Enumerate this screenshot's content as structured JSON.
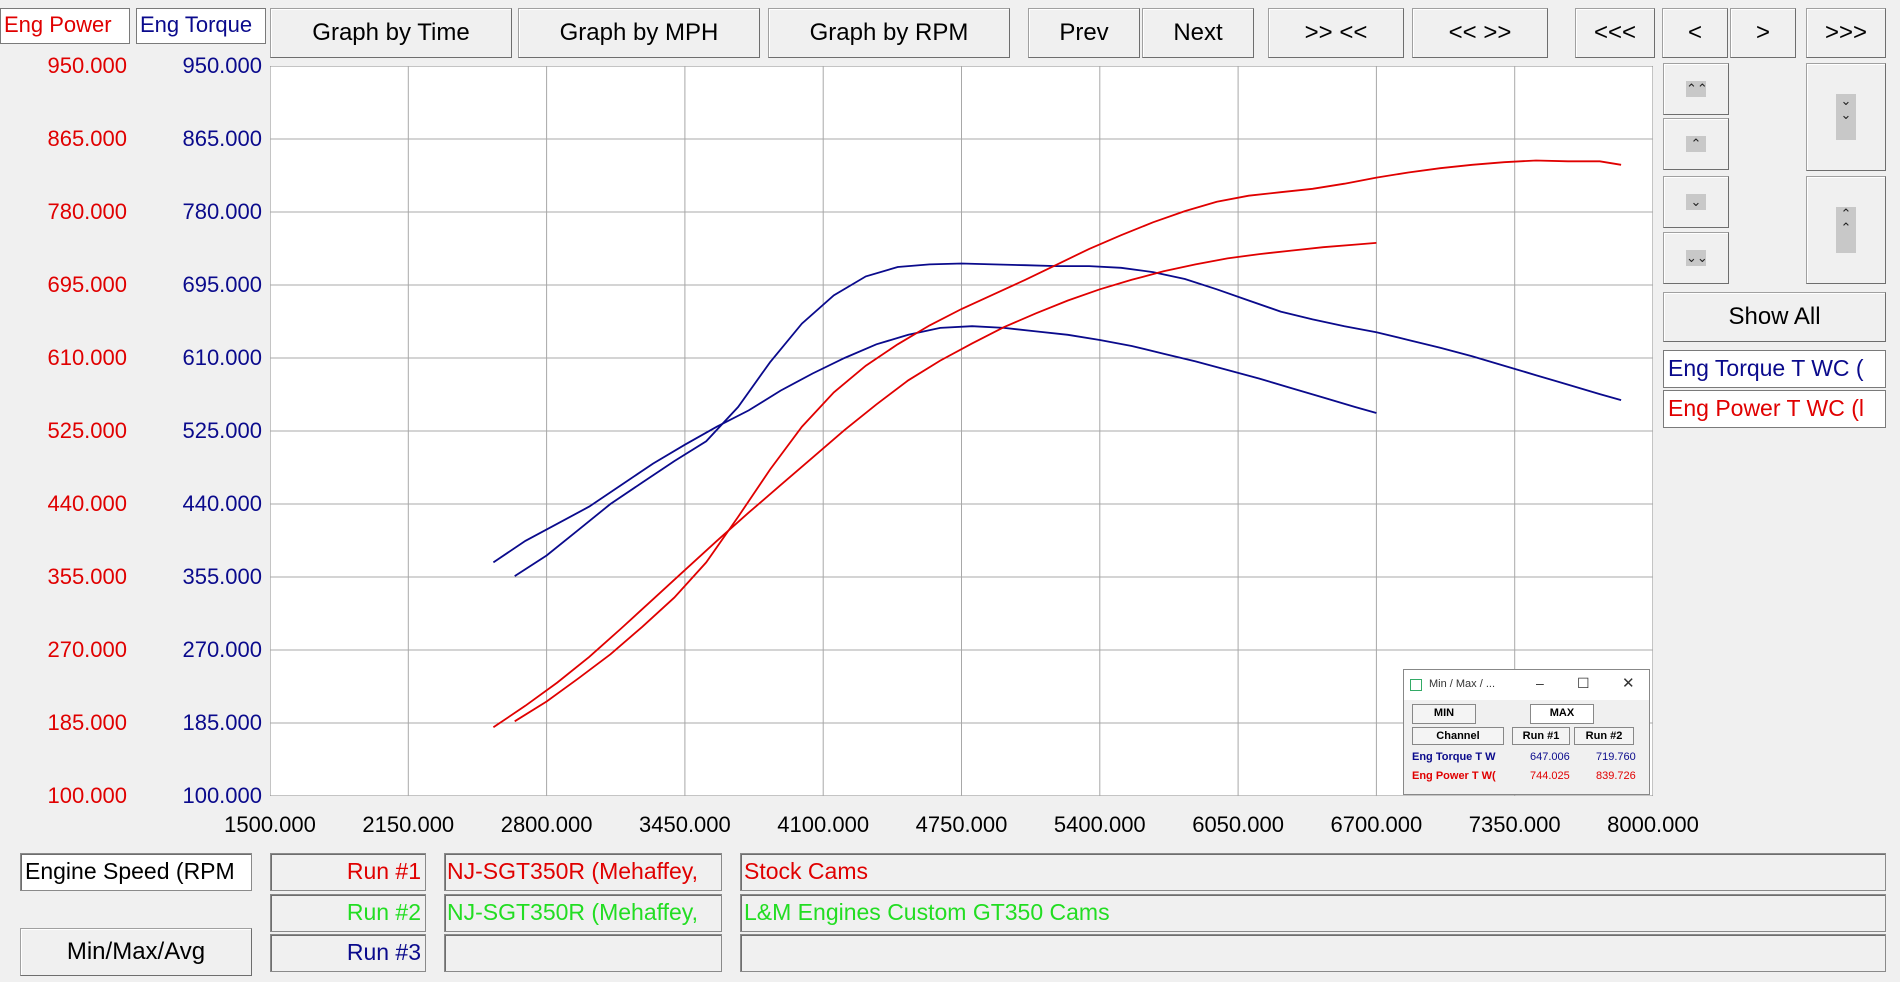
{
  "colors": {
    "power": "#e00000",
    "torque": "#0a0a8c",
    "green": "#22dd22",
    "grid": "#a8a8a8"
  },
  "header": {
    "power_label": "Eng Power",
    "torque_label": "Eng Torque"
  },
  "toolbar": {
    "graph_time": "Graph by Time",
    "graph_mph": "Graph by MPH",
    "graph_rpm": "Graph by RPM",
    "prev": "Prev",
    "next": "Next",
    "zoom_in": ">> <<",
    "zoom_out": "<< >>",
    "first": "<<<",
    "back": "<",
    "fwd": ">",
    "last": ">>>"
  },
  "side": {
    "show_all": "Show All",
    "legend_torque": "Eng Torque T WC (",
    "legend_power": "Eng Power T WC (l",
    "up_fast_icon": "double-chevron-up-icon",
    "up_icon": "chevron-up-icon",
    "down_icon": "chevron-down-icon",
    "down_fast_icon": "double-chevron-down-icon"
  },
  "footer": {
    "x_channel": "Engine Speed (RPM",
    "run1": "Run #1",
    "run2": "Run #2",
    "run3": "Run #3",
    "run1_vehicle": "NJ-SGT350R (Mehaffey,",
    "run2_vehicle": "NJ-SGT350R (Mehaffey,",
    "run1_desc": "Stock Cams",
    "run2_desc": "L&M Engines Custom GT350 Cams",
    "minmax_button": "Min/Max/Avg"
  },
  "minmax_window": {
    "title": "Min / Max / ...",
    "min_tab": "MIN",
    "max_tab": "MAX",
    "col_channel": "Channel",
    "col_run1": "Run #1",
    "col_run2": "Run #2",
    "rows": [
      {
        "channel": "Eng Torque T W",
        "run1": "647.006",
        "run2": "719.760"
      },
      {
        "channel": "Eng Power T W(",
        "run1": "744.025",
        "run2": "839.726"
      }
    ]
  },
  "chart_data": {
    "type": "line",
    "xlabel": "Engine Speed (RPM",
    "xlim": [
      1500,
      8000
    ],
    "ylim": [
      100,
      950
    ],
    "x_ticks": [
      "1500.000",
      "2150.000",
      "2800.000",
      "3450.000",
      "4100.000",
      "4750.000",
      "5400.000",
      "6050.000",
      "6700.000",
      "7350.000",
      "8000.000"
    ],
    "y_ticks": [
      "950.000",
      "865.000",
      "780.000",
      "695.000",
      "610.000",
      "525.000",
      "440.000",
      "355.000",
      "270.000",
      "185.000",
      "100.000"
    ],
    "grid": true,
    "series": [
      {
        "name": "Eng Torque T WC (",
        "run": "Run #1",
        "axis": "torque",
        "points": [
          [
            2550,
            372
          ],
          [
            2700,
            397
          ],
          [
            2850,
            417
          ],
          [
            3000,
            437
          ],
          [
            3150,
            462
          ],
          [
            3300,
            487
          ],
          [
            3450,
            509
          ],
          [
            3600,
            530
          ],
          [
            3750,
            549
          ],
          [
            3900,
            572
          ],
          [
            4050,
            592
          ],
          [
            4200,
            610
          ],
          [
            4350,
            626
          ],
          [
            4500,
            637
          ],
          [
            4650,
            645
          ],
          [
            4800,
            647
          ],
          [
            4950,
            645
          ],
          [
            5100,
            641
          ],
          [
            5250,
            637
          ],
          [
            5400,
            631
          ],
          [
            5550,
            624
          ],
          [
            5700,
            615
          ],
          [
            5850,
            606
          ],
          [
            6000,
            596
          ],
          [
            6150,
            586
          ],
          [
            6300,
            575
          ],
          [
            6450,
            564
          ],
          [
            6600,
            553
          ],
          [
            6700,
            546
          ]
        ]
      },
      {
        "name": "Eng Torque T WC (",
        "run": "Run #2",
        "axis": "torque",
        "points": [
          [
            2650,
            356
          ],
          [
            2800,
            380
          ],
          [
            2950,
            410
          ],
          [
            3100,
            440
          ],
          [
            3250,
            465
          ],
          [
            3400,
            490
          ],
          [
            3550,
            513
          ],
          [
            3700,
            553
          ],
          [
            3850,
            605
          ],
          [
            4000,
            650
          ],
          [
            4150,
            683
          ],
          [
            4300,
            705
          ],
          [
            4450,
            716
          ],
          [
            4600,
            719
          ],
          [
            4750,
            720
          ],
          [
            4900,
            719
          ],
          [
            5050,
            718
          ],
          [
            5200,
            717
          ],
          [
            5350,
            717
          ],
          [
            5500,
            715
          ],
          [
            5650,
            710
          ],
          [
            5800,
            702
          ],
          [
            5950,
            690
          ],
          [
            6100,
            677
          ],
          [
            6250,
            664
          ],
          [
            6400,
            655
          ],
          [
            6550,
            647
          ],
          [
            6700,
            640
          ],
          [
            6850,
            631
          ],
          [
            7000,
            622
          ],
          [
            7150,
            612
          ],
          [
            7300,
            601
          ],
          [
            7450,
            590
          ],
          [
            7600,
            579
          ],
          [
            7750,
            568
          ],
          [
            7850,
            561
          ]
        ]
      },
      {
        "name": "Eng Power T WC (l",
        "run": "Run #1",
        "axis": "power",
        "points": [
          [
            2550,
            180
          ],
          [
            2700,
            205
          ],
          [
            2850,
            232
          ],
          [
            3000,
            262
          ],
          [
            3150,
            295
          ],
          [
            3300,
            329
          ],
          [
            3450,
            363
          ],
          [
            3600,
            397
          ],
          [
            3750,
            430
          ],
          [
            3900,
            462
          ],
          [
            4050,
            494
          ],
          [
            4200,
            526
          ],
          [
            4350,
            556
          ],
          [
            4500,
            584
          ],
          [
            4650,
            607
          ],
          [
            4800,
            627
          ],
          [
            4950,
            646
          ],
          [
            5100,
            662
          ],
          [
            5250,
            677
          ],
          [
            5400,
            690
          ],
          [
            5550,
            701
          ],
          [
            5700,
            711
          ],
          [
            5850,
            719
          ],
          [
            6000,
            726
          ],
          [
            6150,
            731
          ],
          [
            6300,
            735
          ],
          [
            6450,
            739
          ],
          [
            6600,
            742
          ],
          [
            6700,
            744
          ]
        ]
      },
      {
        "name": "Eng Power T WC (l",
        "run": "Run #2",
        "axis": "power",
        "points": [
          [
            2650,
            187
          ],
          [
            2800,
            210
          ],
          [
            2950,
            237
          ],
          [
            3100,
            265
          ],
          [
            3250,
            297
          ],
          [
            3400,
            331
          ],
          [
            3550,
            372
          ],
          [
            3700,
            425
          ],
          [
            3850,
            480
          ],
          [
            4000,
            530
          ],
          [
            4150,
            570
          ],
          [
            4300,
            601
          ],
          [
            4450,
            626
          ],
          [
            4600,
            648
          ],
          [
            4750,
            667
          ],
          [
            4900,
            684
          ],
          [
            5050,
            701
          ],
          [
            5200,
            719
          ],
          [
            5350,
            737
          ],
          [
            5500,
            753
          ],
          [
            5650,
            768
          ],
          [
            5800,
            781
          ],
          [
            5950,
            792
          ],
          [
            6100,
            799
          ],
          [
            6250,
            803
          ],
          [
            6400,
            807
          ],
          [
            6550,
            813
          ],
          [
            6700,
            820
          ],
          [
            6850,
            826
          ],
          [
            7000,
            831
          ],
          [
            7150,
            835
          ],
          [
            7300,
            838
          ],
          [
            7450,
            840
          ],
          [
            7600,
            839
          ],
          [
            7750,
            839
          ],
          [
            7850,
            835
          ]
        ]
      }
    ]
  }
}
